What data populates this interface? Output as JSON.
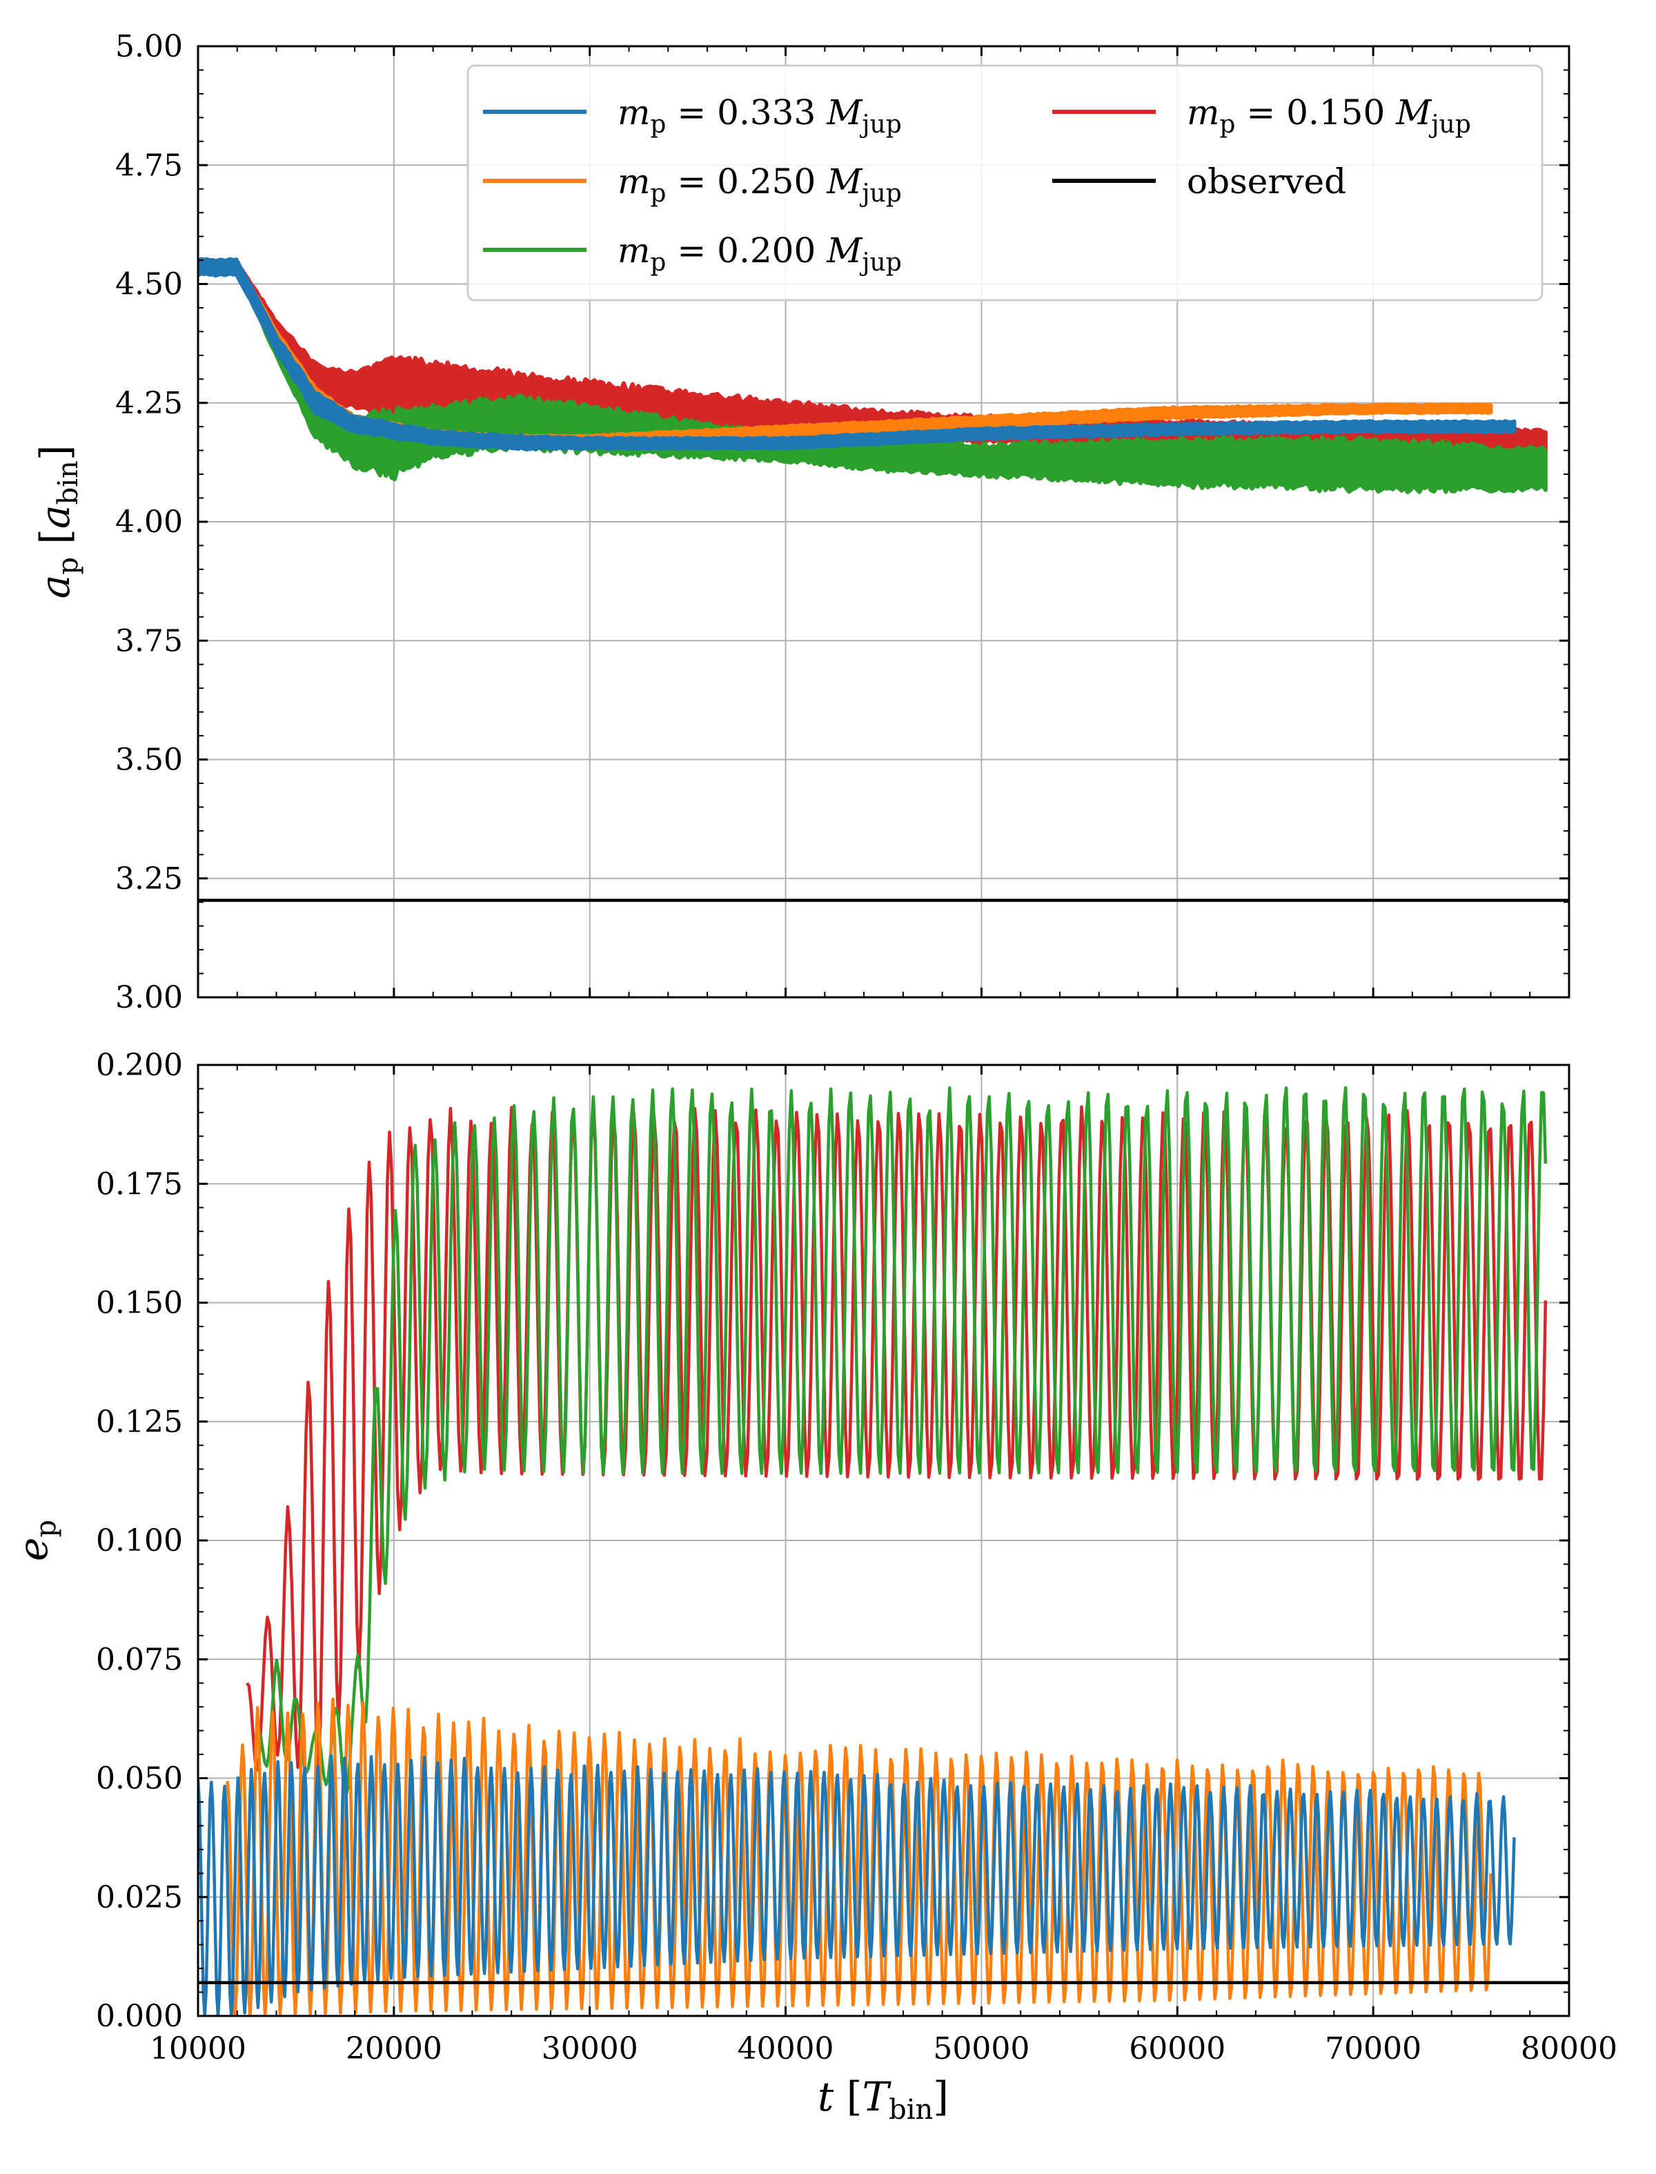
{
  "chart_data": [
    {
      "type": "line",
      "panel": "top",
      "ylabel": "a_p [a_bin]",
      "ylim": [
        3.0,
        5.0
      ],
      "xlim": [
        10000,
        80000
      ],
      "yticks": [
        "3.00",
        "3.25",
        "3.50",
        "3.75",
        "4.00",
        "4.25",
        "4.50",
        "4.75",
        "5.00"
      ],
      "grid": true,
      "legend": {
        "placement": "upper-right",
        "columns": 2,
        "entries": [
          {
            "label": "m_p = 0.333 M_jup",
            "color": "#1f77b4"
          },
          {
            "label": "m_p = 0.250 M_jup",
            "color": "#ff7f0e"
          },
          {
            "label": "m_p = 0.200 M_jup",
            "color": "#2ca02c"
          },
          {
            "label": "m_p = 0.150 M_jup",
            "color": "#d62728"
          },
          {
            "label": "observed",
            "color": "#000000"
          }
        ]
      },
      "series": [
        {
          "name": "m_p = 0.150 M_jup",
          "color": "#d62728",
          "x_end": 78800,
          "envelope_upper": [
            [
              10000,
              4.545
            ],
            [
              12000,
              4.545
            ],
            [
              14000,
              4.42
            ],
            [
              16000,
              4.33
            ],
            [
              18000,
              4.31
            ],
            [
              20000,
              4.34
            ],
            [
              22000,
              4.33
            ],
            [
              26000,
              4.31
            ],
            [
              30000,
              4.29
            ],
            [
              35000,
              4.27
            ],
            [
              40000,
              4.25
            ],
            [
              45000,
              4.23
            ],
            [
              50000,
              4.22
            ],
            [
              60000,
              4.21
            ],
            [
              70000,
              4.2
            ],
            [
              78800,
              4.19
            ]
          ],
          "envelope_lower": [
            [
              10000,
              4.53
            ],
            [
              12000,
              4.53
            ],
            [
              14000,
              4.38
            ],
            [
              16000,
              4.27
            ],
            [
              18000,
              4.24
            ],
            [
              20000,
              4.22
            ],
            [
              22000,
              4.21
            ],
            [
              26000,
              4.2
            ],
            [
              30000,
              4.19
            ],
            [
              35000,
              4.18
            ],
            [
              40000,
              4.17
            ],
            [
              45000,
              4.17
            ],
            [
              50000,
              4.17
            ],
            [
              60000,
              4.16
            ],
            [
              70000,
              4.16
            ],
            [
              78800,
              4.15
            ]
          ]
        },
        {
          "name": "m_p = 0.200 M_jup",
          "color": "#2ca02c",
          "x_end": 78800,
          "envelope_upper": [
            [
              10000,
              4.545
            ],
            [
              12000,
              4.545
            ],
            [
              14000,
              4.38
            ],
            [
              16000,
              4.25
            ],
            [
              18000,
              4.22
            ],
            [
              20000,
              4.23
            ],
            [
              22000,
              4.24
            ],
            [
              26000,
              4.26
            ],
            [
              30000,
              4.24
            ],
            [
              35000,
              4.21
            ],
            [
              40000,
              4.18
            ],
            [
              45000,
              4.17
            ],
            [
              50000,
              4.16
            ],
            [
              60000,
              4.17
            ],
            [
              70000,
              4.17
            ],
            [
              78800,
              4.15
            ]
          ],
          "envelope_lower": [
            [
              10000,
              4.53
            ],
            [
              12000,
              4.53
            ],
            [
              14000,
              4.35
            ],
            [
              16000,
              4.18
            ],
            [
              18000,
              4.12
            ],
            [
              20000,
              4.1
            ],
            [
              22000,
              4.14
            ],
            [
              26000,
              4.16
            ],
            [
              30000,
              4.15
            ],
            [
              35000,
              4.14
            ],
            [
              40000,
              4.13
            ],
            [
              45000,
              4.11
            ],
            [
              50000,
              4.1
            ],
            [
              60000,
              4.08
            ],
            [
              70000,
              4.07
            ],
            [
              78800,
              4.07
            ]
          ]
        },
        {
          "name": "m_p = 0.250 M_jup",
          "color": "#ff7f0e",
          "x_end": 76000,
          "envelope_upper": [
            [
              10000,
              4.545
            ],
            [
              12000,
              4.545
            ],
            [
              14000,
              4.4
            ],
            [
              16000,
              4.28
            ],
            [
              18000,
              4.22
            ],
            [
              22000,
              4.19
            ],
            [
              26000,
              4.18
            ],
            [
              30000,
              4.18
            ],
            [
              35000,
              4.19
            ],
            [
              40000,
              4.2
            ],
            [
              45000,
              4.21
            ],
            [
              50000,
              4.22
            ],
            [
              60000,
              4.24
            ],
            [
              70000,
              4.245
            ],
            [
              76000,
              4.245
            ]
          ],
          "envelope_lower": [
            [
              10000,
              4.53
            ],
            [
              12000,
              4.53
            ],
            [
              14000,
              4.38
            ],
            [
              16000,
              4.24
            ],
            [
              18000,
              4.2
            ],
            [
              22000,
              4.17
            ],
            [
              26000,
              4.17
            ],
            [
              30000,
              4.17
            ],
            [
              35000,
              4.17
            ],
            [
              40000,
              4.18
            ],
            [
              45000,
              4.19
            ],
            [
              50000,
              4.2
            ],
            [
              60000,
              4.22
            ],
            [
              70000,
              4.23
            ],
            [
              76000,
              4.23
            ]
          ]
        },
        {
          "name": "m_p = 0.333 M_jup",
          "color": "#1f77b4",
          "x_end": 77200,
          "envelope_upper": [
            [
              10000,
              4.55
            ],
            [
              12000,
              4.55
            ],
            [
              14000,
              4.39
            ],
            [
              16000,
              4.27
            ],
            [
              18000,
              4.22
            ],
            [
              22000,
              4.19
            ],
            [
              26000,
              4.18
            ],
            [
              30000,
              4.175
            ],
            [
              35000,
              4.175
            ],
            [
              40000,
              4.175
            ],
            [
              45000,
              4.185
            ],
            [
              50000,
              4.195
            ],
            [
              60000,
              4.205
            ],
            [
              70000,
              4.21
            ],
            [
              77200,
              4.21
            ]
          ],
          "envelope_lower": [
            [
              10000,
              4.52
            ],
            [
              12000,
              4.52
            ],
            [
              14000,
              4.36
            ],
            [
              16000,
              4.23
            ],
            [
              18000,
              4.19
            ],
            [
              22000,
              4.165
            ],
            [
              26000,
              4.155
            ],
            [
              30000,
              4.155
            ],
            [
              35000,
              4.155
            ],
            [
              40000,
              4.155
            ],
            [
              45000,
              4.165
            ],
            [
              50000,
              4.175
            ],
            [
              60000,
              4.185
            ],
            [
              70000,
              4.19
            ],
            [
              77200,
              4.19
            ]
          ]
        }
      ],
      "observed": 3.204
    },
    {
      "type": "line",
      "panel": "bottom",
      "xlabel": "t [T_bin]",
      "ylabel": "e_p",
      "ylim": [
        0.0,
        0.2
      ],
      "xlim": [
        10000,
        80000
      ],
      "xticks": [
        "10000",
        "20000",
        "30000",
        "40000",
        "50000",
        "60000",
        "70000",
        "80000"
      ],
      "yticks": [
        "0.000",
        "0.025",
        "0.050",
        "0.075",
        "0.100",
        "0.125",
        "0.150",
        "0.175",
        "0.200"
      ],
      "grid": true,
      "series": [
        {
          "name": "m_p = 0.150 M_jup",
          "color": "#d62728",
          "x_start": 12500,
          "x_end": 78800,
          "period": 1040,
          "envelope_upper": [
            [
              12500,
              0.07
            ],
            [
              14000,
              0.09
            ],
            [
              16000,
              0.15
            ],
            [
              18000,
              0.18
            ],
            [
              20000,
              0.19
            ],
            [
              25000,
              0.192
            ],
            [
              78800,
              0.192
            ]
          ],
          "envelope_lower": [
            [
              12500,
              0.05
            ],
            [
              14000,
              0.055
            ],
            [
              16000,
              0.05
            ],
            [
              18000,
              0.07
            ],
            [
              20000,
              0.1
            ],
            [
              22000,
              0.115
            ],
            [
              25000,
              0.114
            ],
            [
              78800,
              0.111
            ]
          ]
        },
        {
          "name": "m_p = 0.200 M_jup",
          "color": "#2ca02c",
          "x_start": 13000,
          "x_end": 78800,
          "period": 1010,
          "envelope_upper": [
            [
              13000,
              0.06
            ],
            [
              14000,
              0.075
            ],
            [
              16000,
              0.06
            ],
            [
              18000,
              0.07
            ],
            [
              19500,
              0.16
            ],
            [
              21000,
              0.185
            ],
            [
              24000,
              0.19
            ],
            [
              30000,
              0.195
            ],
            [
              78800,
              0.197
            ]
          ],
          "envelope_lower": [
            [
              13000,
              0.05
            ],
            [
              14000,
              0.055
            ],
            [
              16000,
              0.05
            ],
            [
              18000,
              0.045
            ],
            [
              19500,
              0.09
            ],
            [
              21000,
              0.11
            ],
            [
              24000,
              0.115
            ],
            [
              30000,
              0.114
            ],
            [
              78800,
              0.113
            ]
          ]
        },
        {
          "name": "m_p = 0.250 M_jup",
          "color": "#ff7f0e",
          "x_start": 11500,
          "x_end": 76000,
          "period": 770,
          "envelope_upper": [
            [
              11500,
              0.05
            ],
            [
              13000,
              0.065
            ],
            [
              16000,
              0.068
            ],
            [
              20000,
              0.065
            ],
            [
              30000,
              0.06
            ],
            [
              40000,
              0.058
            ],
            [
              50000,
              0.056
            ],
            [
              60000,
              0.055
            ],
            [
              76000,
              0.053
            ]
          ],
          "envelope_lower": [
            [
              11500,
              0.0
            ],
            [
              13000,
              0.0
            ],
            [
              20000,
              0.001
            ],
            [
              40000,
              0.002
            ],
            [
              60000,
              0.003
            ],
            [
              76000,
              0.005
            ]
          ]
        },
        {
          "name": "m_p = 0.333 M_jup",
          "color": "#1f77b4",
          "x_start": 10000,
          "x_end": 77200,
          "period": 680,
          "envelope_upper": [
            [
              10000,
              0.05
            ],
            [
              12000,
              0.052
            ],
            [
              15000,
              0.055
            ],
            [
              20000,
              0.055
            ],
            [
              30000,
              0.053
            ],
            [
              40000,
              0.052
            ],
            [
              50000,
              0.05
            ],
            [
              60000,
              0.049
            ],
            [
              77200,
              0.047
            ]
          ],
          "envelope_lower": [
            [
              10000,
              0.0
            ],
            [
              12000,
              0.0
            ],
            [
              15000,
              0.005
            ],
            [
              20000,
              0.008
            ],
            [
              30000,
              0.01
            ],
            [
              40000,
              0.012
            ],
            [
              50000,
              0.013
            ],
            [
              60000,
              0.014
            ],
            [
              77200,
              0.015
            ]
          ]
        }
      ],
      "observed": 0.007
    }
  ]
}
